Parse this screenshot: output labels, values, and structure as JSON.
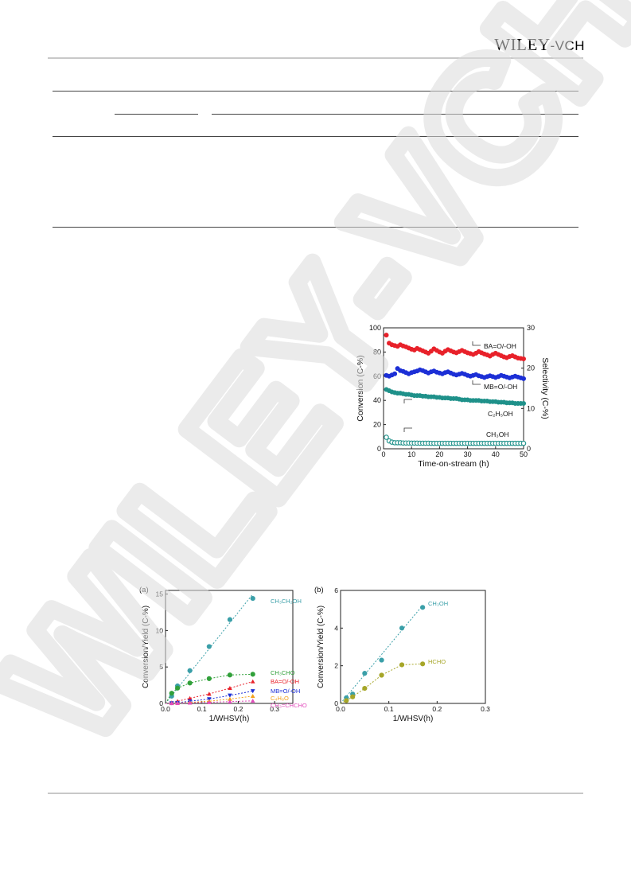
{
  "header": {
    "logo_main": "WILEY",
    "logo_suffix": "-VCH"
  },
  "watermark": {
    "text": "WILEY-VCH",
    "color": "#dcdcdc"
  },
  "figure1": {
    "chart_data": {
      "type": "scatter",
      "xlabel": "Time-on-stream (h)",
      "ylabel_left": "Conversion  (C-%)",
      "ylabel_right": "Selectivity (C-%)",
      "xlim": [
        0,
        50
      ],
      "ylim_left": [
        0,
        100
      ],
      "ylim_right": [
        0,
        30
      ],
      "xticks": [
        0,
        10,
        20,
        30,
        40,
        50
      ],
      "yticks_left": [
        0,
        20,
        40,
        60,
        80,
        100
      ],
      "yticks_right": [
        0,
        10,
        20,
        30
      ],
      "series": [
        {
          "name": "BA=O/-OH",
          "axis": "right",
          "color": "#e8212a",
          "filled": true,
          "x": [
            1,
            2,
            3,
            4,
            5,
            6,
            7,
            8,
            9,
            10,
            11,
            12,
            13,
            14,
            15,
            16,
            17,
            18,
            19,
            20,
            21,
            22,
            23,
            24,
            25,
            26,
            27,
            28,
            29,
            30,
            31,
            32,
            33,
            34,
            35,
            36,
            37,
            38,
            39,
            40,
            41,
            42,
            43,
            44,
            45,
            46,
            47,
            48,
            49,
            50
          ],
          "y": [
            28.2,
            26.2,
            25.8,
            25.6,
            25.4,
            25.8,
            25.5,
            25.3,
            25.0,
            24.7,
            24.5,
            24.9,
            24.6,
            24.3,
            24.0,
            23.7,
            24.2,
            24.8,
            24.4,
            24.0,
            23.7,
            24.2,
            24.6,
            24.3,
            24.0,
            23.8,
            24.1,
            24.4,
            24.1,
            23.8,
            23.6,
            23.4,
            23.7,
            24.1,
            23.8,
            23.5,
            23.3,
            23.0,
            23.4,
            23.7,
            23.4,
            23.1,
            22.8,
            22.6,
            22.9,
            23.1,
            22.8,
            22.5,
            22.4,
            22.3
          ]
        },
        {
          "name": "MB=O/-OH",
          "axis": "right",
          "color": "#1c2fd6",
          "filled": true,
          "x": [
            1,
            2,
            3,
            4,
            5,
            6,
            7,
            8,
            9,
            10,
            11,
            12,
            13,
            14,
            15,
            16,
            17,
            18,
            19,
            20,
            21,
            22,
            23,
            24,
            25,
            26,
            27,
            28,
            29,
            30,
            31,
            32,
            33,
            34,
            35,
            36,
            37,
            38,
            39,
            40,
            41,
            42,
            43,
            44,
            45,
            46,
            47,
            48,
            49,
            50
          ],
          "y": [
            18.2,
            18.0,
            18.3,
            18.6,
            19.9,
            19.4,
            19.2,
            18.9,
            18.6,
            18.9,
            19.1,
            19.3,
            19.6,
            19.4,
            19.1,
            18.8,
            19.1,
            19.3,
            19.0,
            18.8,
            18.6,
            18.9,
            19.1,
            18.8,
            18.5,
            18.3,
            18.5,
            18.7,
            18.5,
            18.2,
            18.0,
            18.2,
            18.4,
            18.1,
            17.9,
            17.7,
            17.9,
            18.1,
            17.9,
            17.7,
            17.9,
            18.2,
            18.0,
            17.8,
            17.6,
            17.8,
            18.0,
            17.8,
            17.6,
            17.4
          ]
        },
        {
          "name": "C₂H₅OH",
          "axis": "left",
          "color": "#1f918a",
          "filled": true,
          "x": [
            1,
            2,
            3,
            4,
            5,
            6,
            7,
            8,
            9,
            10,
            11,
            12,
            13,
            14,
            15,
            16,
            17,
            18,
            19,
            20,
            21,
            22,
            23,
            24,
            25,
            26,
            27,
            28,
            29,
            30,
            31,
            32,
            33,
            34,
            35,
            36,
            37,
            38,
            39,
            40,
            41,
            42,
            43,
            44,
            45,
            46,
            47,
            48,
            49,
            50
          ],
          "y": [
            49,
            48,
            47,
            46.5,
            46,
            46,
            45.5,
            45,
            45,
            44.5,
            44,
            44,
            44,
            43.5,
            43.5,
            43,
            43,
            43,
            42.5,
            42.5,
            42,
            42,
            42,
            41.5,
            41.5,
            41.5,
            41,
            40.5,
            40.5,
            40.5,
            40,
            40,
            40,
            40,
            39.5,
            39.5,
            39.5,
            39,
            39,
            39,
            38.5,
            38.5,
            38.5,
            38,
            38,
            38,
            37.5,
            37.5,
            37.5,
            37.5
          ]
        },
        {
          "name": "CH₃OH",
          "axis": "left",
          "color": "#1f918a",
          "filled": false,
          "x": [
            1,
            2,
            3,
            4,
            5,
            6,
            7,
            8,
            9,
            10,
            11,
            12,
            13,
            14,
            15,
            16,
            17,
            18,
            19,
            20,
            21,
            22,
            23,
            24,
            25,
            26,
            27,
            28,
            29,
            30,
            31,
            32,
            33,
            34,
            35,
            36,
            37,
            38,
            39,
            40,
            41,
            42,
            43,
            44,
            45,
            46,
            47,
            48,
            49,
            50
          ],
          "y": [
            9.5,
            6.5,
            5.5,
            5,
            5,
            5,
            4.8,
            4.8,
            4.8,
            4.7,
            4.7,
            4.7,
            4.6,
            4.6,
            4.6,
            4.6,
            4.5,
            4.5,
            4.5,
            4.5,
            4.5,
            4.5,
            4.5,
            4.5,
            4.5,
            4.5,
            4.5,
            4.5,
            4.5,
            4.5,
            4.5,
            4.5,
            4.5,
            4.5,
            4.5,
            4.5,
            4.5,
            4.5,
            4.5,
            4.5,
            4.5,
            4.5,
            4.5,
            4.5,
            4.5,
            4.5,
            4.5,
            4.5,
            4.5,
            4.5
          ]
        }
      ]
    }
  },
  "figure2": {
    "panel_a": {
      "panel_label": "(a)",
      "chart_data": {
        "type": "scatter",
        "xlabel": "1/WHSV(h)",
        "ylabel": "Conversion/Yield (C-%)",
        "xlim": [
          0,
          0.35
        ],
        "ylim": [
          0,
          15.5
        ],
        "xticks": [
          "0.0",
          "0.1",
          "0.2",
          "0.3"
        ],
        "yticks": [
          0,
          5,
          10,
          15
        ],
        "series": [
          {
            "name": "CH₃CH₂OH",
            "color": "#3a9fa8",
            "marker": "circle",
            "x": [
              0.017,
              0.033,
              0.067,
              0.12,
              0.177,
              0.24
            ],
            "y": [
              1.0,
              2.4,
              4.5,
              7.8,
              11.5,
              14.4
            ],
            "fit_end": [
              0.24,
              15.0
            ]
          },
          {
            "name": "CH₃CHO",
            "color": "#31a03a",
            "marker": "circle",
            "x": [
              0.017,
              0.033,
              0.067,
              0.12,
              0.177,
              0.24
            ],
            "y": [
              1.4,
              2.1,
              2.8,
              3.4,
              3.9,
              4.0
            ]
          },
          {
            "name": "BA=O/-OH",
            "color": "#e8212a",
            "marker": "triangle-up",
            "x": [
              0.017,
              0.033,
              0.067,
              0.12,
              0.177,
              0.24
            ],
            "y": [
              0.1,
              0.3,
              0.7,
              1.3,
              2.1,
              3.0
            ]
          },
          {
            "name": "MB=O/-OH",
            "color": "#1c2fd6",
            "marker": "triangle-down",
            "x": [
              0.017,
              0.033,
              0.067,
              0.12,
              0.177,
              0.24
            ],
            "y": [
              0.05,
              0.1,
              0.3,
              0.6,
              1.1,
              1.7
            ]
          },
          {
            "name": "C₄H₈O",
            "color": "#f3a21c",
            "marker": "triangle-up",
            "x": [
              0.017,
              0.033,
              0.067,
              0.12,
              0.177,
              0.24
            ],
            "y": [
              0.02,
              0.05,
              0.15,
              0.3,
              0.6,
              1.0
            ]
          },
          {
            "name": "CH₃=CHCHO",
            "color": "#e24dbc",
            "marker": "triangle-up",
            "x": [
              0.017,
              0.033,
              0.067,
              0.12,
              0.177,
              0.24
            ],
            "y": [
              0.01,
              0.03,
              0.08,
              0.15,
              0.25,
              0.35
            ]
          }
        ]
      }
    },
    "panel_b": {
      "panel_label": "(b)",
      "chart_data": {
        "type": "scatter",
        "xlabel": "1/WHSV(h)",
        "ylabel": "Conversion/Yield (C-%)",
        "xlim": [
          0,
          0.3
        ],
        "ylim": [
          0,
          6
        ],
        "xticks": [
          "0.0",
          "0.1",
          "0.2",
          "0.3"
        ],
        "yticks": [
          0,
          2,
          4,
          6
        ],
        "series": [
          {
            "name": "CH₃OH",
            "color": "#3a9fa8",
            "marker": "circle",
            "x": [
              0.012,
              0.025,
              0.05,
              0.085,
              0.127,
              0.17
            ],
            "y": [
              0.3,
              0.5,
              1.6,
              2.3,
              4.0,
              5.1
            ],
            "fit_end": [
              0.17,
              5.2
            ]
          },
          {
            "name": "HCHO",
            "color": "#a6a628",
            "marker": "circle",
            "x": [
              0.012,
              0.025,
              0.05,
              0.085,
              0.127,
              0.17
            ],
            "y": [
              0.15,
              0.35,
              0.8,
              1.5,
              2.05,
              2.1
            ]
          }
        ]
      }
    }
  }
}
